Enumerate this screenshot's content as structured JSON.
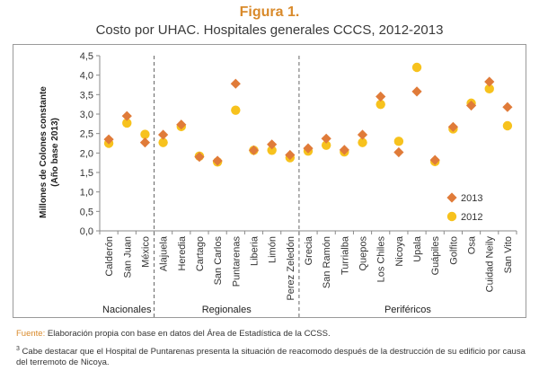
{
  "header": {
    "figure_label": "Figura 1.",
    "title": "Costo por UHAC. Hospitales generales CCCS, 2012-2013"
  },
  "chart_data": {
    "type": "scatter",
    "ylabel": "Millones de Colones constante (Año base 2013)",
    "ylim": [
      0,
      4.5
    ],
    "yticks": [
      "0,0",
      "0,5",
      "1,0",
      "1,5",
      "2,0",
      "2,5",
      "3,0",
      "3,5",
      "4,0",
      "4,5"
    ],
    "categories": [
      "Calderón",
      "San Juan",
      "México",
      "Alajuela",
      "Heredia",
      "Cartago",
      "San Carlos",
      "Puntarenas",
      "Liberia",
      "Limón",
      "Perez Zeledón",
      "Grecia",
      "San Ramón",
      "Turrialba",
      "Quepos",
      "Los Chiles",
      "Nicoya",
      "Upala",
      "Guápiles",
      "Golfito",
      "Osa",
      "Cuidad Neily",
      "San Vito"
    ],
    "groups": [
      {
        "name": "Nacionales",
        "count": 3
      },
      {
        "name": "Regionales",
        "count": 8
      },
      {
        "name": "Periféricos",
        "count": 12
      }
    ],
    "series": [
      {
        "name": "2013",
        "marker": "diamond",
        "color": "#e07b39",
        "values": [
          2.35,
          2.95,
          2.27,
          2.47,
          2.73,
          1.9,
          1.8,
          3.78,
          2.07,
          2.22,
          1.95,
          2.12,
          2.37,
          2.08,
          2.47,
          3.45,
          2.02,
          3.58,
          1.82,
          2.67,
          3.22,
          3.83,
          3.18
        ]
      },
      {
        "name": "2012",
        "marker": "circle",
        "color": "#f7c21d",
        "values": [
          2.25,
          2.77,
          2.48,
          2.27,
          2.68,
          1.92,
          1.77,
          3.1,
          2.07,
          2.07,
          1.88,
          2.05,
          2.2,
          2.03,
          2.27,
          3.25,
          2.3,
          4.2,
          1.78,
          2.62,
          3.28,
          3.65,
          2.7
        ]
      }
    ],
    "legend_position": "right",
    "grid": false
  },
  "source": {
    "label": "Fuente:",
    "text": "Elaboración propia con base en datos del Área de Estadística de la CCSS."
  },
  "footnote": {
    "marker": "3",
    "text": "Cabe destacar que el Hospital de Puntarenas presenta la situación de reacomodo después de la destrucción de su edificio por causa del terremoto de Nicoya."
  }
}
